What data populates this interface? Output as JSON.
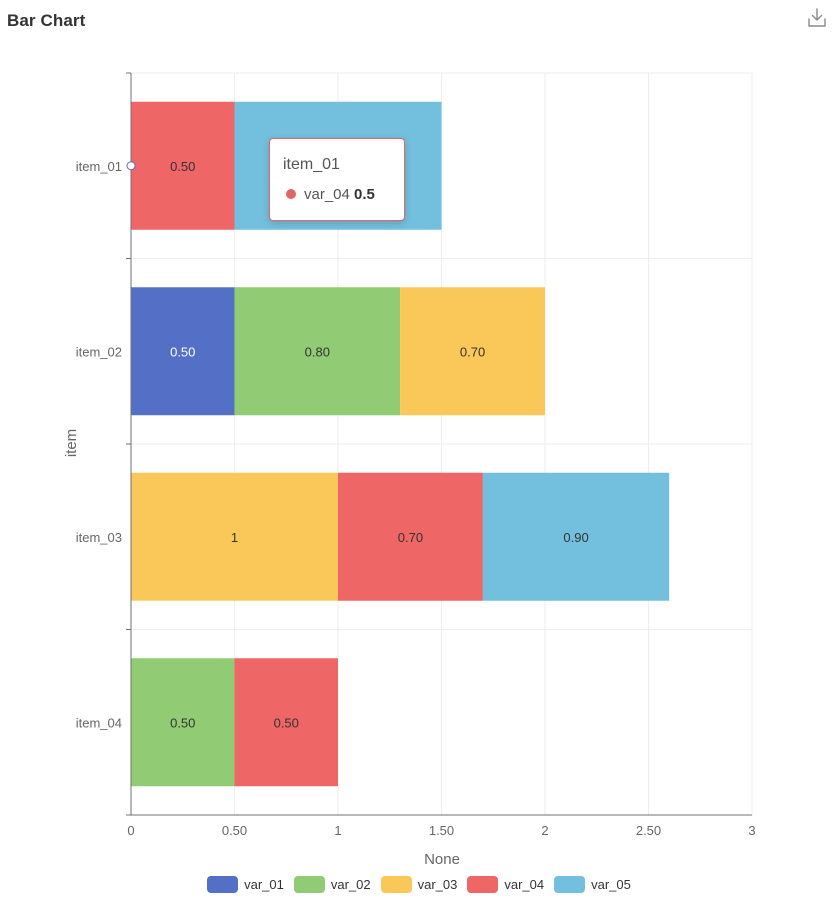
{
  "page": {
    "title": "Bar Chart",
    "download_icon": "download-icon"
  },
  "chart_data": {
    "type": "bar",
    "orientation": "horizontal",
    "stacked": true,
    "categories": [
      "item_01",
      "item_02",
      "item_03",
      "item_04"
    ],
    "xlabel": "None",
    "ylabel": "item",
    "xlim": [
      0,
      3
    ],
    "xticks": [
      "0",
      "0.50",
      "1",
      "1.50",
      "2",
      "2.50",
      "3"
    ],
    "grid": true,
    "legend_position": "bottom",
    "series": [
      {
        "name": "var_01",
        "color": "#5470c6",
        "values": [
          null,
          0.5,
          null,
          null
        ],
        "labels": [
          null,
          "0.50",
          null,
          null
        ]
      },
      {
        "name": "var_02",
        "color": "#91cc75",
        "values": [
          null,
          0.8,
          null,
          0.5
        ],
        "labels": [
          null,
          "0.80",
          null,
          "0.50"
        ]
      },
      {
        "name": "var_03",
        "color": "#fac858",
        "values": [
          null,
          0.7,
          1,
          null
        ],
        "labels": [
          null,
          "0.70",
          "1",
          null
        ]
      },
      {
        "name": "var_04",
        "color": "#ee6666",
        "values": [
          0.5,
          null,
          0.7,
          0.5
        ],
        "labels": [
          "0.50",
          null,
          "0.70",
          "0.50"
        ]
      },
      {
        "name": "var_05",
        "color": "#73c0de",
        "values": [
          1.0,
          null,
          0.9,
          null
        ],
        "labels": [
          null,
          null,
          "0.90",
          null
        ]
      }
    ],
    "tooltip": {
      "category": "item_01",
      "series": "var_04",
      "value": "0.5",
      "color": "#e06666"
    }
  }
}
